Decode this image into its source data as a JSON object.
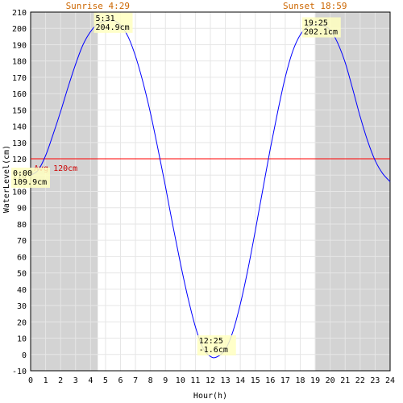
{
  "chart_data": {
    "type": "line",
    "title": "",
    "xlabel": "Hour(h)",
    "ylabel": "WaterLevel(cm)",
    "xlim": [
      0,
      24
    ],
    "ylim": [
      -10,
      210
    ],
    "x_ticks": [
      0,
      1,
      2,
      3,
      4,
      5,
      6,
      7,
      8,
      9,
      10,
      11,
      12,
      13,
      14,
      15,
      16,
      17,
      18,
      19,
      20,
      21,
      22,
      23,
      24
    ],
    "y_ticks": [
      -10,
      0,
      10,
      20,
      30,
      40,
      50,
      60,
      70,
      80,
      90,
      100,
      110,
      120,
      130,
      140,
      150,
      160,
      170,
      180,
      190,
      200,
      210
    ],
    "grid": true,
    "sunrise": {
      "label": "Sunrise 4:29",
      "hour": 4.483
    },
    "sunset": {
      "label": "Sunset 18:59",
      "hour": 18.983
    },
    "night_color": "#d3d3d3",
    "average": {
      "label": "Avg 120cm",
      "value": 120,
      "color": "#ff0000"
    },
    "series": [
      {
        "color": "#0000ff",
        "x": [
          0,
          0.5,
          1,
          1.5,
          2,
          2.5,
          3,
          3.5,
          4,
          4.5,
          5,
          5.517,
          6,
          6.5,
          7,
          7.5,
          8,
          8.5,
          9,
          9.5,
          10,
          10.5,
          11,
          11.5,
          12,
          12.417,
          13,
          13.5,
          14,
          14.5,
          15,
          15.5,
          16,
          16.5,
          17,
          17.5,
          18,
          18.5,
          19,
          19.417,
          20,
          20.5,
          21,
          21.5,
          22,
          22.5,
          23,
          23.5,
          24
        ],
        "y": [
          109.9,
          113,
          122,
          135,
          149,
          164,
          178,
          190,
          198,
          203,
          204.5,
          204.9,
          202,
          195,
          183,
          167,
          148,
          126,
          103,
          79,
          56,
          35,
          17,
          4,
          -1.2,
          -1.6,
          3,
          14,
          31,
          52,
          76,
          101,
          126,
          149,
          170,
          186,
          196,
          201,
          202,
          202.1,
          199,
          191,
          179,
          163,
          146,
          131,
          119,
          111,
          106
        ]
      }
    ],
    "annotations": [
      {
        "time": "0:00",
        "value": "109.9cm",
        "x": 0,
        "y": 109.9
      },
      {
        "time": "5:31",
        "value": "204.9cm",
        "x": 5.517,
        "y": 204.9
      },
      {
        "time": "12:25",
        "value": "-1.6cm",
        "x": 12.417,
        "y": -1.6
      },
      {
        "time": "19:25",
        "value": "202.1cm",
        "x": 19.417,
        "y": 202.1
      }
    ]
  }
}
